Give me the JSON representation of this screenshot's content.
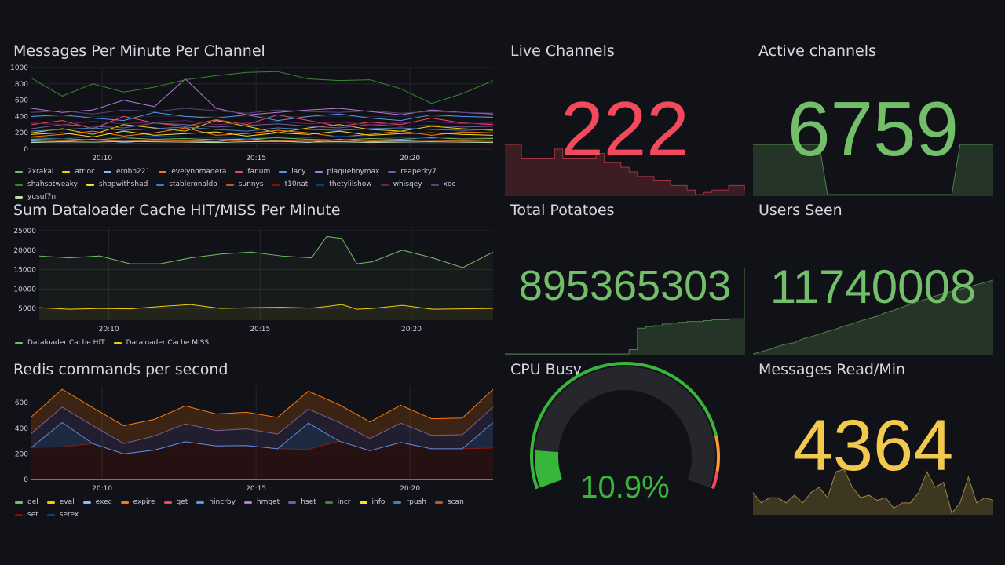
{
  "panels": {
    "messages": {
      "title": "Messages Per Minute Per Channel"
    },
    "dataloader": {
      "title": "Sum Dataloader Cache HIT/MISS Per Minute"
    },
    "redis": {
      "title": "Redis commands per second"
    },
    "live": {
      "title": "Live Channels",
      "value": "222",
      "color": "#f2495c"
    },
    "active": {
      "title": "Active channels",
      "value": "6759",
      "color": "#73bf69"
    },
    "potatoes": {
      "title": "Total Potatoes",
      "value": "895365303",
      "color": "#73bf69"
    },
    "users": {
      "title": "Users Seen",
      "value": "11740008",
      "color": "#73bf69"
    },
    "cpu": {
      "title": "CPU Busy",
      "value": "10.9%",
      "percent": 10.9,
      "color": "#37b739",
      "thresholds": [
        {
          "from": 0,
          "color": "#37b739"
        },
        {
          "from": 85,
          "color": "#ff9830"
        },
        {
          "from": 95,
          "color": "#f2495c"
        }
      ]
    },
    "msgread": {
      "title": "Messages Read/Min",
      "value": "4364",
      "color": "#f2c94c"
    }
  },
  "sparklines": {
    "live": [
      330,
      330,
      300,
      300,
      300,
      300,
      320,
      300,
      300,
      300,
      300,
      310,
      290,
      290,
      280,
      270,
      260,
      260,
      250,
      250,
      240,
      240,
      230,
      220,
      225,
      230,
      230,
      240,
      240,
      230
    ],
    "active": [
      0.9,
      0.9,
      0.9,
      0.9,
      0.9,
      0.9,
      0.9,
      0.9,
      0.9,
      0.05,
      0.05,
      0.05,
      0.05,
      0.05,
      0.05,
      0.05,
      0.05,
      0.05,
      0.05,
      0.05,
      0.05,
      0.05,
      0.05,
      0.05,
      0.05,
      0.9,
      0.9,
      0.9,
      0.9,
      0.9
    ],
    "potatoes": [
      0,
      0,
      0,
      0,
      0,
      0,
      0,
      0,
      0,
      0,
      0,
      0,
      0,
      0,
      0,
      0.05,
      0.3,
      0.32,
      0.33,
      0.35,
      0.36,
      0.37,
      0.38,
      0.38,
      0.39,
      0.4,
      0.4,
      0.41,
      0.41,
      1
    ],
    "users": [
      0,
      0.03,
      0.06,
      0.1,
      0.13,
      0.15,
      0.2,
      0.23,
      0.26,
      0.3,
      0.33,
      0.37,
      0.4,
      0.44,
      0.47,
      0.5,
      0.55,
      0.58,
      0.62,
      0.66,
      0.7,
      0.73,
      0.77,
      0.8,
      0.83,
      0.86,
      0.89,
      0.92,
      0.95,
      0.98
    ],
    "msgread": [
      0.5,
      0.3,
      0.4,
      0.4,
      0.3,
      0.45,
      0.3,
      0.5,
      0.6,
      0.4,
      0.9,
      0.95,
      0.6,
      0.4,
      0.45,
      0.35,
      0.4,
      0.2,
      0.3,
      0.3,
      0.5,
      0.9,
      0.6,
      0.7,
      0.1,
      0.3,
      0.8,
      0.3,
      0.4,
      0.35
    ]
  },
  "chart_data": [
    {
      "type": "line",
      "title": "Messages Per Minute Per Channel",
      "xlabel": "",
      "ylabel": "",
      "ylim": [
        0,
        1000
      ],
      "yticks": [
        0,
        200,
        400,
        600,
        800,
        1000
      ],
      "xlim": [
        7.7,
        22.7
      ],
      "xticks": [
        {
          "v": 10,
          "label": "20:10"
        },
        {
          "v": 15,
          "label": "20:15"
        },
        {
          "v": 20,
          "label": "20:20"
        }
      ],
      "x": [
        7.7,
        8.7,
        9.7,
        10.7,
        11.7,
        12.7,
        13.7,
        14.7,
        15.7,
        16.7,
        17.7,
        18.7,
        19.7,
        20.7,
        21.7,
        22.7
      ],
      "series": [
        {
          "name": "2xrakai",
          "color": "#73bf69",
          "values": [
            120,
            130,
            110,
            140,
            120,
            130,
            115,
            125,
            140,
            120,
            110,
            130,
            120,
            140,
            125,
            130
          ]
        },
        {
          "name": "atrioc",
          "color": "#f2cc0c",
          "values": [
            200,
            250,
            180,
            300,
            260,
            220,
            350,
            280,
            200,
            260,
            300,
            240,
            220,
            280,
            250,
            230
          ]
        },
        {
          "name": "erobb221",
          "color": "#8ab8ff",
          "values": [
            100,
            90,
            120,
            80,
            110,
            100,
            90,
            130,
            100,
            80,
            120,
            90,
            100,
            110,
            100,
            95
          ]
        },
        {
          "name": "evelynomadera",
          "color": "#ff780a",
          "values": [
            150,
            180,
            220,
            160,
            200,
            260,
            170,
            190,
            230,
            200,
            150,
            180,
            220,
            170,
            210,
            200
          ]
        },
        {
          "name": "fanum",
          "color": "#f2495c",
          "values": [
            300,
            350,
            250,
            400,
            320,
            280,
            360,
            300,
            420,
            350,
            280,
            330,
            300,
            380,
            320,
            300
          ]
        },
        {
          "name": "lacy",
          "color": "#5794f2",
          "values": [
            400,
            420,
            380,
            350,
            450,
            400,
            380,
            420,
            350,
            400,
            430,
            380,
            350,
            420,
            400,
            390
          ]
        },
        {
          "name": "plaqueboymax",
          "color": "#b877d9",
          "values": [
            500,
            450,
            480,
            600,
            520,
            860,
            500,
            420,
            450,
            480,
            500,
            460,
            420,
            480,
            450,
            430
          ]
        },
        {
          "name": "reaperky7",
          "color": "#705da0",
          "values": [
            250,
            300,
            280,
            260,
            320,
            300,
            270,
            290,
            310,
            280,
            260,
            300,
            280,
            290,
            270,
            280
          ]
        },
        {
          "name": "shahsotweaky",
          "color": "#37872d",
          "values": [
            870,
            650,
            800,
            700,
            760,
            850,
            900,
            940,
            950,
            860,
            840,
            850,
            740,
            560,
            680,
            840
          ]
        },
        {
          "name": "shopwithshad",
          "color": "#fade2a",
          "values": [
            180,
            200,
            150,
            220,
            170,
            190,
            210,
            160,
            200,
            180,
            220,
            170,
            190,
            200,
            180,
            170
          ]
        },
        {
          "name": "stableronaldo",
          "color": "#447ebc",
          "values": [
            220,
            240,
            260,
            230,
            250,
            270,
            240,
            220,
            260,
            240,
            230,
            250,
            260,
            240,
            230,
            240
          ]
        },
        {
          "name": "sunnys",
          "color": "#c15c17",
          "values": [
            90,
            100,
            110,
            95,
            105,
            100,
            110,
            95,
            100,
            105,
            95,
            100,
            110,
            105,
            100,
            95
          ]
        },
        {
          "name": "t10nat",
          "color": "#890f02",
          "values": [
            60,
            70,
            65,
            75,
            70,
            60,
            65,
            70,
            75,
            65,
            70,
            60,
            65,
            70,
            65,
            60
          ]
        },
        {
          "name": "thetylilshow",
          "color": "#0a437c",
          "values": [
            140,
            130,
            150,
            140,
            160,
            150,
            140,
            130,
            150,
            140,
            160,
            150,
            140,
            130,
            150,
            140
          ]
        },
        {
          "name": "whisqey",
          "color": "#6d1f62",
          "values": [
            320,
            300,
            340,
            310,
            330,
            350,
            300,
            320,
            340,
            310,
            330,
            300,
            320,
            340,
            310,
            320
          ]
        },
        {
          "name": "xqc",
          "color": "#584477",
          "values": [
            450,
            470,
            430,
            480,
            460,
            500,
            470,
            440,
            480,
            460,
            450,
            470,
            440,
            460,
            450,
            440
          ]
        },
        {
          "name": "yusuf7n",
          "color": "#b7dbab",
          "values": [
            80,
            90,
            85,
            95,
            90,
            85,
            80,
            90,
            95,
            85,
            90,
            80,
            85,
            90,
            85,
            80
          ]
        }
      ]
    },
    {
      "type": "line",
      "title": "Sum Dataloader Cache HIT/MISS Per Minute",
      "ylim": [
        2000,
        26000
      ],
      "yticks": [
        5000,
        10000,
        15000,
        20000,
        25000
      ],
      "xlim": [
        7.7,
        22.7
      ],
      "xticks": [
        {
          "v": 10,
          "label": "20:10"
        },
        {
          "v": 15,
          "label": "20:15"
        },
        {
          "v": 20,
          "label": "20:20"
        }
      ],
      "x": [
        7.7,
        8.7,
        9.7,
        10.7,
        11.7,
        12.7,
        13.7,
        14.7,
        15.7,
        16.7,
        17.2,
        17.7,
        18.2,
        18.7,
        19.7,
        20.7,
        21.7,
        22.7
      ],
      "series": [
        {
          "name": "Dataloader Cache HIT",
          "color": "#73bf69",
          "values": [
            18500,
            18000,
            18500,
            16500,
            16500,
            18000,
            19000,
            19500,
            18500,
            18000,
            23500,
            23000,
            16500,
            17000,
            20000,
            18000,
            15500,
            19500
          ]
        },
        {
          "name": "Dataloader Cache MISS",
          "color": "#f2cc0c",
          "values": [
            5200,
            4800,
            5000,
            4900,
            5500,
            6000,
            5000,
            5200,
            5300,
            5100,
            5500,
            6000,
            4800,
            5000,
            5800,
            4800,
            4900,
            5000
          ]
        }
      ]
    },
    {
      "type": "area",
      "stacked": true,
      "title": "Redis commands per second",
      "ylim": [
        0,
        730
      ],
      "yticks": [
        0,
        200,
        400,
        600
      ],
      "xlim": [
        7.7,
        22.7
      ],
      "xticks": [
        {
          "v": 10,
          "label": "20:10"
        },
        {
          "v": 15,
          "label": "20:15"
        },
        {
          "v": 20,
          "label": "20:20"
        }
      ],
      "x": [
        7.7,
        8.7,
        9.7,
        10.7,
        11.7,
        12.7,
        13.7,
        14.7,
        15.7,
        16.7,
        17.7,
        18.7,
        19.7,
        20.7,
        21.7,
        22.7
      ],
      "series": [
        {
          "name": "set",
          "color": "#890f02",
          "values": [
            250,
            255,
            280,
            200,
            230,
            295,
            262,
            265,
            240,
            235,
            300,
            225,
            290,
            240,
            240,
            245
          ]
        },
        {
          "name": "hincrby",
          "color": "#5794f2",
          "values": [
            0,
            190,
            0,
            0,
            0,
            0,
            0,
            0,
            0,
            205,
            0,
            0,
            0,
            0,
            0,
            200
          ]
        },
        {
          "name": "hset",
          "color": "#705da0",
          "values": [
            110,
            120,
            140,
            80,
            110,
            140,
            120,
            130,
            115,
            110,
            145,
            95,
            150,
            105,
            110,
            120
          ]
        },
        {
          "name": "scan",
          "color": "#ff780a",
          "values": [
            130,
            140,
            140,
            140,
            130,
            140,
            130,
            130,
            130,
            140,
            140,
            130,
            140,
            130,
            130,
            140
          ]
        }
      ],
      "legend": [
        "del",
        "eval",
        "exec",
        "expire",
        "get",
        "hincrby",
        "hmget",
        "hset",
        "incr",
        "info",
        "rpush",
        "scan",
        "set",
        "setex"
      ],
      "legend_colors": [
        "#73bf69",
        "#f2cc0c",
        "#8ab8ff",
        "#ff780a",
        "#f2495c",
        "#5794f2",
        "#b877d9",
        "#705da0",
        "#37872d",
        "#fade2a",
        "#447ebc",
        "#c15c17",
        "#890f02",
        "#0a437c"
      ]
    }
  ]
}
